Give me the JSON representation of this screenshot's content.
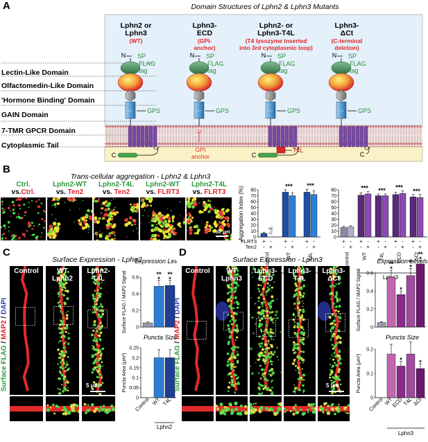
{
  "panelA": {
    "label": "A",
    "title": "Domain Structures of Lphn2 & Lphn3 Mutants",
    "columns": [
      {
        "name1": "Lphn2 or",
        "name2": "Lphn3",
        "sub": [
          "(WT)"
        ]
      },
      {
        "name1": "Lphn3-",
        "name2": "ECD",
        "sub": [
          "(GPI-",
          "anchor)"
        ]
      },
      {
        "name1": "Lphn2- or",
        "name2": "Lphn3-T4L",
        "sub": [
          "(T4 lysozyme inserted",
          "into 3rd cytoplasmic loop)"
        ]
      },
      {
        "name1": "Lphn3-",
        "name2": "ΔCt",
        "sub": [
          "(C-terminal",
          "deletion)"
        ]
      }
    ],
    "domains": [
      "Lectin-Like Domain",
      "Olfactomedin-Like Domain",
      "'Hormone Binding' Domain",
      "GAIN Domain",
      "7-TMR GPCR Domain",
      "Cytoplasmic Tail"
    ],
    "annot": {
      "N": "N",
      "C": "C",
      "SP": "SP",
      "FLAG": "FLAG",
      "tag": "tag",
      "GPS": "GPS",
      "GPI1": "GPI",
      "GPI2": "anchor",
      "T4L": "T4L"
    }
  },
  "panelB": {
    "label": "B",
    "title": "Trans-cellular aggregation - Lphn2 & Lphn3",
    "images": [
      {
        "l1": "Ctrl.",
        "l2a": "vs.",
        "l2b": "Ctrl."
      },
      {
        "l1": "Lphn2-WT",
        "l2a": "vs. ",
        "l2b": "Ten2"
      },
      {
        "l1": "Lphn2-T4L",
        "l2a": "vs. ",
        "l2b": "Ten2"
      },
      {
        "l1": "Lphn2-WT",
        "l2a": "vs. ",
        "l2b": "FLRT3"
      },
      {
        "l1": "Lphn2-T4L",
        "l2a": "vs. ",
        "l2b": "FLRT3"
      }
    ],
    "scalebar": "50 μm",
    "nd": "n.d.",
    "row_flrt3": "FLRT3",
    "row_ten2": "Ten2"
  },
  "panelC": {
    "label": "C",
    "title": "Surface Expression - Lphn2",
    "images": [
      {
        "l1": "Control",
        "l2": ""
      },
      {
        "l1": "WT",
        "l2": "Lphn2"
      },
      {
        "l1": "Lphn2-",
        "l2": "T4L"
      }
    ],
    "side_green": "Surface FLAG",
    "side_sep1": " / ",
    "side_red": "MAP2",
    "side_sep2": " / ",
    "side_blue": "DAPI",
    "scalebar": "5 μm",
    "expr_title": "Expression Levels",
    "puncta_title": "Puncta Size",
    "group": "Lphn2"
  },
  "panelD": {
    "label": "D",
    "title": "Surface Expression - Lphn3",
    "images": [
      {
        "l1": "Control",
        "l2": ""
      },
      {
        "l1": "WT",
        "l2": "Lphn3"
      },
      {
        "l1": "Lphn3-",
        "l2": "ECD"
      },
      {
        "l1": "Lphn3-",
        "l2": "T4L"
      },
      {
        "l1": "Lphn3-",
        "l2": "ΔCt"
      }
    ],
    "scalebar": "5 μm",
    "expr_title": "Expression Levels",
    "puncta_title": "Puncta Size",
    "group": "Lphn3"
  },
  "chart_data": [
    {
      "id": "B-agg-lphn2",
      "type": "bar",
      "ylabel": "Aggregation Index (%)",
      "ylim": [
        0,
        80
      ],
      "yticks": [
        0,
        10,
        20,
        30,
        40,
        50,
        60,
        70,
        80
      ],
      "categories": [
        "Control",
        "WT",
        "T4L"
      ],
      "group": "Lphn2",
      "bars": [
        {
          "cat": "Control",
          "cond": "FLRT3",
          "value": 6,
          "err": 2,
          "sig": ""
        },
        {
          "cat": "Control",
          "cond": "Ten2",
          "value": 0,
          "err": 0,
          "sig": ""
        },
        {
          "cat": "WT",
          "cond": "FLRT3",
          "value": 76,
          "err": 4,
          "sig": "***"
        },
        {
          "cat": "WT",
          "cond": "Ten2",
          "value": 70,
          "err": 5,
          "sig": ""
        },
        {
          "cat": "T4L",
          "cond": "FLRT3",
          "value": 76,
          "err": 5,
          "sig": "***"
        },
        {
          "cat": "T4L",
          "cond": "Ten2",
          "value": 72,
          "err": 6,
          "sig": ""
        }
      ],
      "flrt3": [
        "+",
        "-",
        "+",
        "-",
        "+",
        "-"
      ],
      "ten2": [
        "-",
        "+",
        "-",
        "+",
        "-",
        "+"
      ]
    },
    {
      "id": "B-agg-lphn3",
      "type": "bar",
      "ylim": [
        0,
        80
      ],
      "yticks": [
        0,
        10,
        20,
        30,
        40,
        50,
        60,
        70,
        80
      ],
      "categories": [
        "Control",
        "WT",
        "T4L",
        "ECD",
        "ΔCt"
      ],
      "group": "Lphn3",
      "bars": [
        {
          "cat": "Control",
          "cond": "FLRT3",
          "value": 16,
          "err": 2,
          "sig": ""
        },
        {
          "cat": "Control",
          "cond": "Ten2",
          "value": 17,
          "err": 2,
          "sig": ""
        },
        {
          "cat": "WT",
          "cond": "FLRT3",
          "value": 71,
          "err": 4,
          "sig": "***"
        },
        {
          "cat": "WT",
          "cond": "Ten2",
          "value": 73,
          "err": 4,
          "sig": ""
        },
        {
          "cat": "T4L",
          "cond": "FLRT3",
          "value": 70,
          "err": 3,
          "sig": "***"
        },
        {
          "cat": "T4L",
          "cond": "Ten2",
          "value": 70,
          "err": 3,
          "sig": ""
        },
        {
          "cat": "ECD",
          "cond": "FLRT3",
          "value": 72,
          "err": 4,
          "sig": "***"
        },
        {
          "cat": "ECD",
          "cond": "Ten2",
          "value": 74,
          "err": 4,
          "sig": ""
        },
        {
          "cat": "ΔCt",
          "cond": "FLRT3",
          "value": 68,
          "err": 4,
          "sig": "***"
        },
        {
          "cat": "ΔCt",
          "cond": "Ten2",
          "value": 67,
          "err": 5,
          "sig": ""
        }
      ],
      "flrt3": [
        "+",
        "-",
        "+",
        "-",
        "+",
        "-",
        "+",
        "-",
        "+",
        "-"
      ],
      "ten2": [
        "-",
        "+",
        "-",
        "+",
        "-",
        "+",
        "-",
        "+",
        "-",
        "+"
      ]
    },
    {
      "id": "C-expr",
      "type": "bar",
      "title": "Expression Levels",
      "ylabel": "Surface FLAG / MAP2 Signal",
      "ylim": [
        0,
        0.6
      ],
      "yticks": [
        0,
        0.2,
        0.4,
        0.6
      ],
      "categories": [
        "Control",
        "WT",
        "T4L"
      ],
      "values": [
        0.05,
        0.49,
        0.5
      ],
      "errors": [
        0.01,
        0.07,
        0.06
      ],
      "sig": [
        "",
        "***",
        "***"
      ]
    },
    {
      "id": "C-puncta",
      "type": "bar",
      "title": "Puncta Size",
      "ylabel": "Puncta Area (μm²)",
      "ylim": [
        0,
        0.25
      ],
      "yticks": [
        0,
        0.05,
        0.1,
        0.15,
        0.2,
        0.25
      ],
      "categories": [
        "Control",
        "WT",
        "T4L"
      ],
      "values": [
        0,
        0.2,
        0.2
      ],
      "errors": [
        0,
        0.04,
        0.04
      ],
      "sig": [
        "",
        "",
        ""
      ],
      "group": "Lphn2"
    },
    {
      "id": "D-expr",
      "type": "bar",
      "title": "Expression Levels",
      "ylabel": "Surface FLAG / MAP2 Signal",
      "ylim": [
        0,
        0.6
      ],
      "yticks": [
        0,
        0.2,
        0.4,
        0.6
      ],
      "categories": [
        "Control",
        "WT",
        "ECD",
        "T4L",
        "ΔCt"
      ],
      "values": [
        0.05,
        0.55,
        0.36,
        0.57,
        0.7
      ],
      "errors": [
        0.01,
        0.08,
        0.04,
        0.08,
        0.04
      ],
      "sig": [
        "",
        "***",
        "*",
        "***",
        "***"
      ]
    },
    {
      "id": "D-puncta",
      "type": "bar",
      "title": "Puncta Size",
      "ylabel": "Puncta Area (μm²)",
      "ylim": [
        0,
        0.2
      ],
      "yticks": [
        0,
        0.1,
        0.2
      ],
      "categories": [
        "Control",
        "WT",
        "ECD",
        "T4L",
        "ΔCt"
      ],
      "values": [
        0,
        0.18,
        0.13,
        0.18,
        0.12
      ],
      "errors": [
        0,
        0.04,
        0.02,
        0.05,
        0.02
      ],
      "sig": [
        "",
        "",
        "*",
        "",
        "*"
      ],
      "group": "Lphn3"
    }
  ]
}
